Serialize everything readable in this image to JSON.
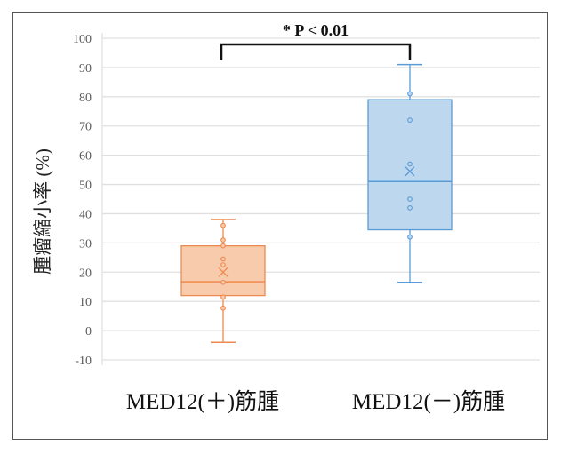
{
  "chart_data": {
    "type": "box",
    "title": "",
    "ylabel": "腫瘤縮小率 (%)",
    "xlabel": "",
    "ylim": [
      -10,
      100
    ],
    "yticks": [
      -10,
      0,
      10,
      20,
      30,
      40,
      50,
      60,
      70,
      80,
      90,
      100
    ],
    "grid": true,
    "categories": [
      "MED12(＋)筋腫",
      "MED12(－)筋腫"
    ],
    "series": [
      {
        "name": "MED12(＋)筋腫",
        "color": "#ed8a4f",
        "fill": "#f8cbad",
        "min": -4,
        "q1": 12,
        "median": 16.7,
        "q3": 29,
        "max": 38,
        "mean": 20,
        "points": [
          36,
          31,
          29,
          24.5,
          22.5,
          16.5,
          11.5,
          7.7
        ]
      },
      {
        "name": "MED12(－)筋腫",
        "color": "#5b9bd5",
        "fill": "#bdd7ee",
        "min": 16.5,
        "q1": 34.5,
        "median": 51,
        "q3": 79,
        "max": 91,
        "mean": 54.5,
        "points": [
          81,
          72,
          57,
          45,
          42,
          32
        ]
      }
    ],
    "annotation": "* P < 0.01"
  }
}
